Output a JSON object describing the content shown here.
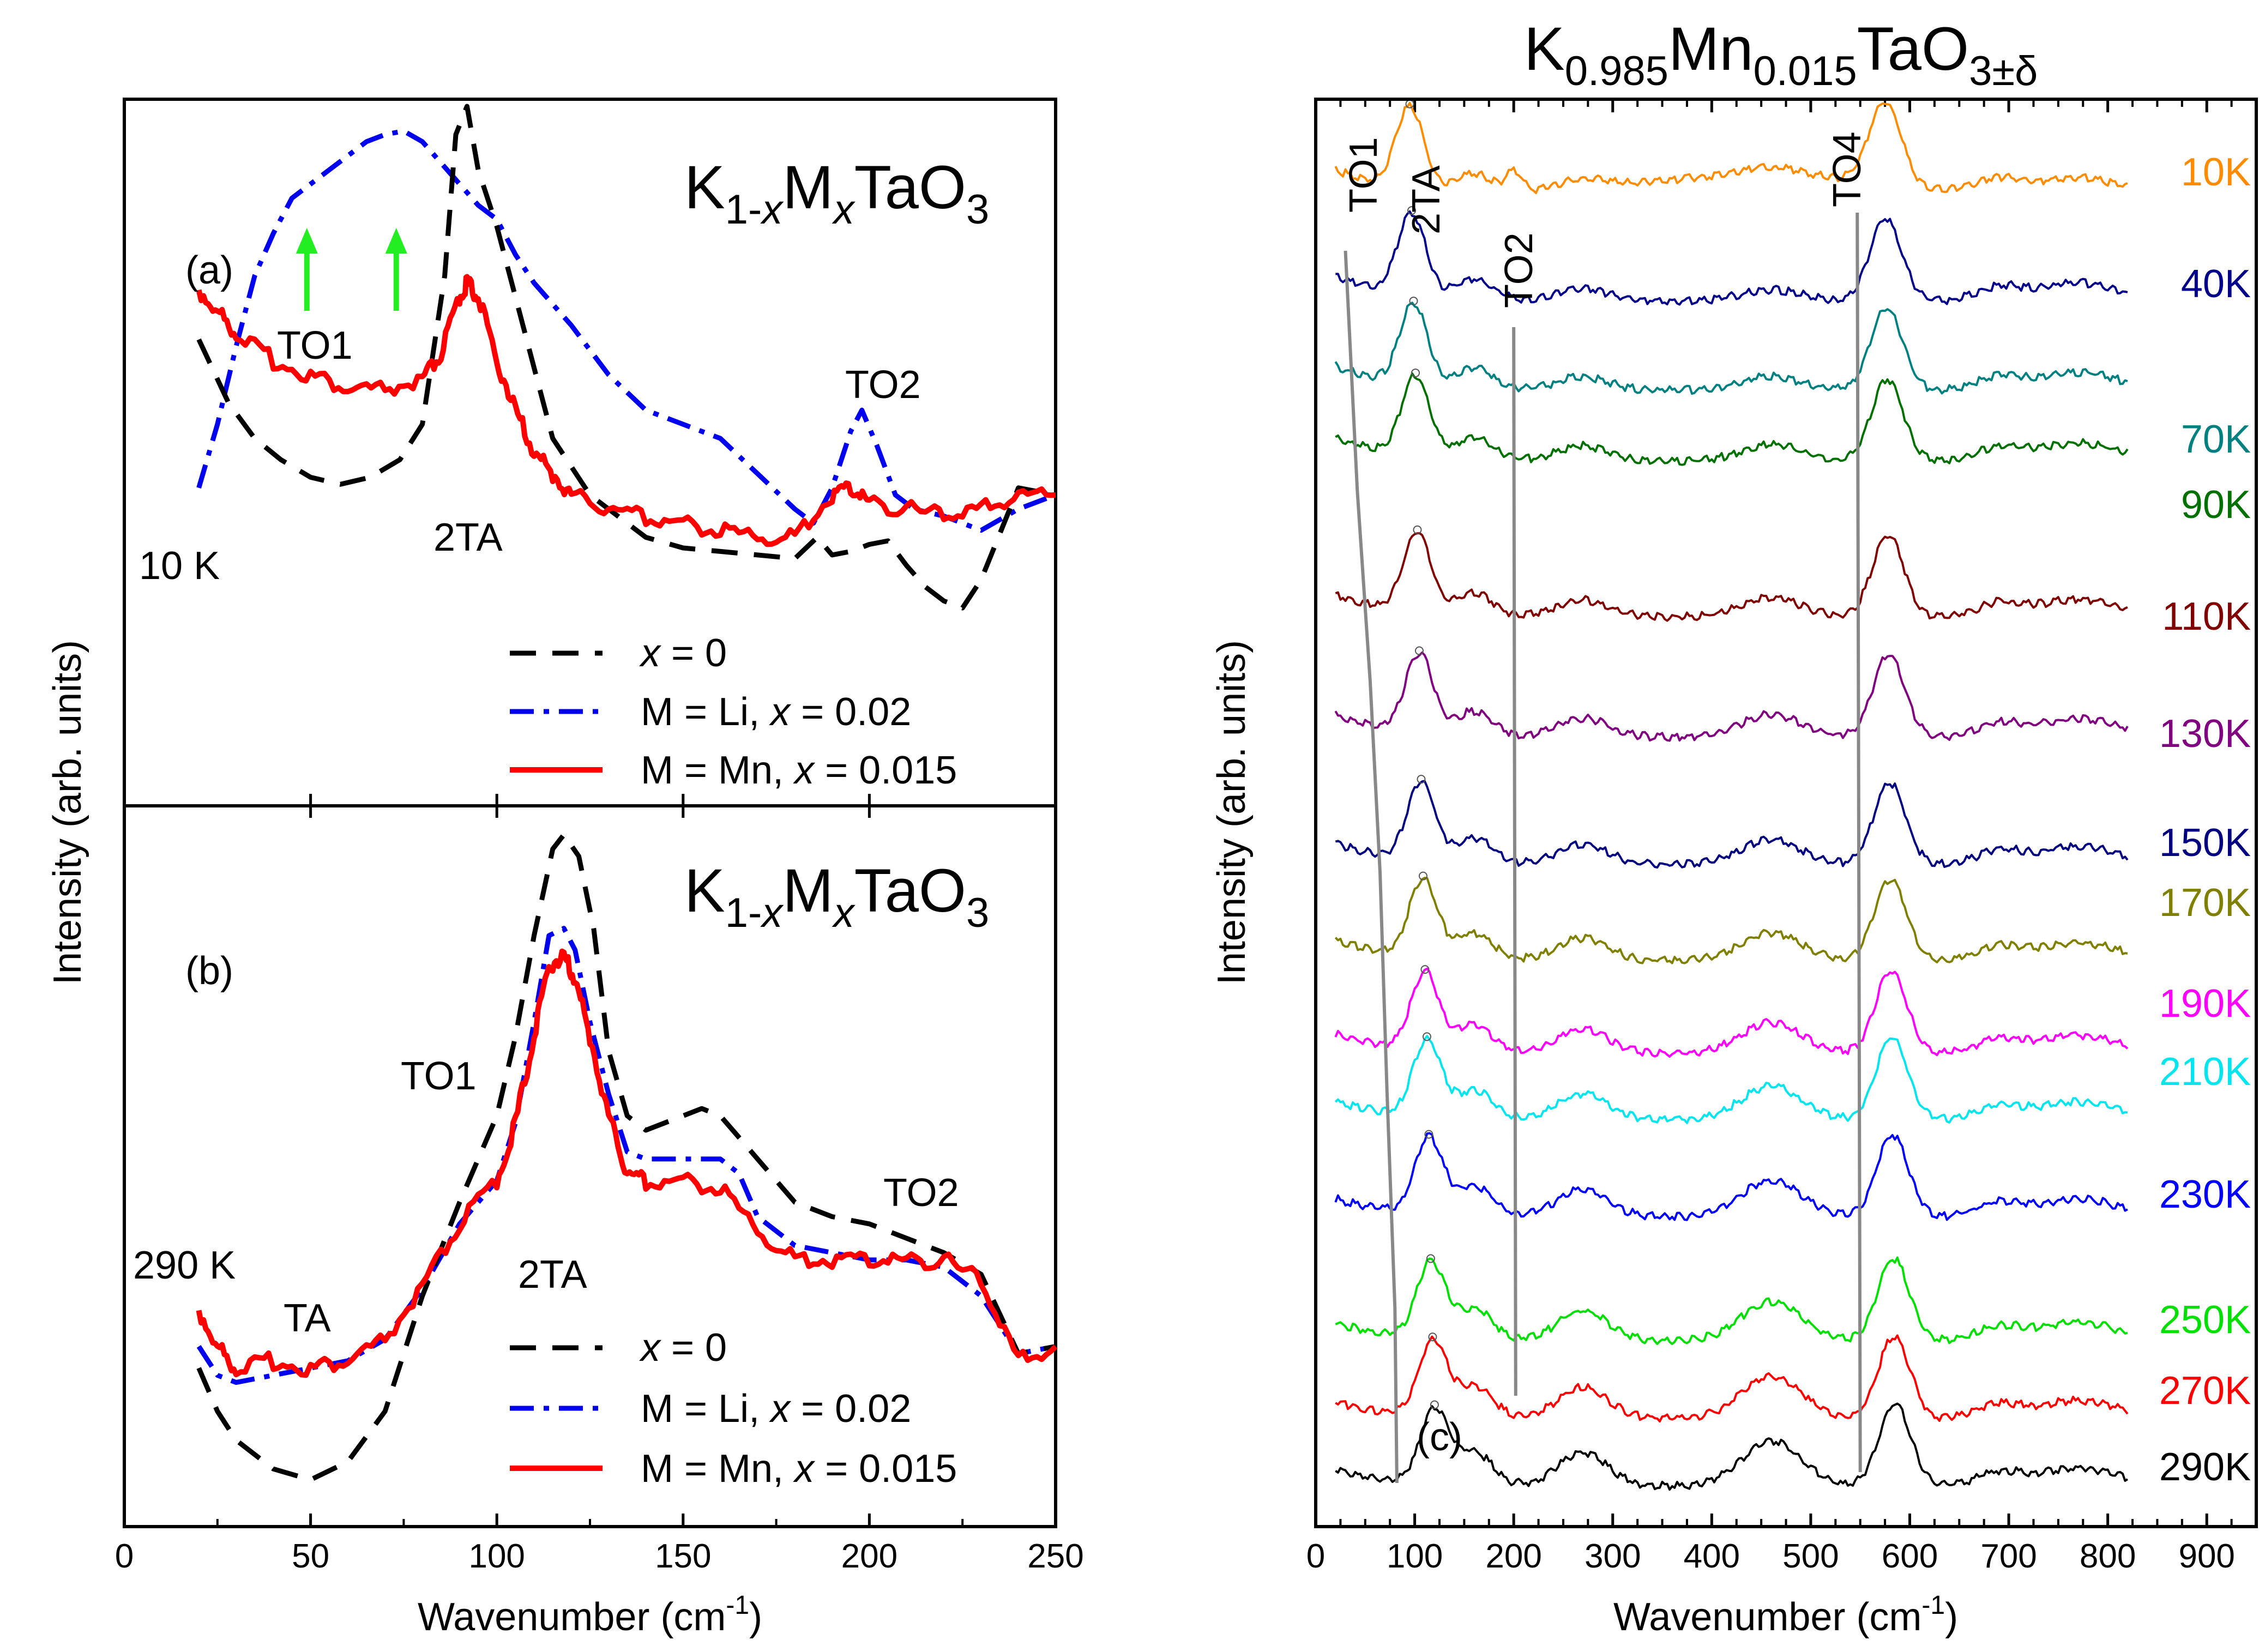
{
  "chart_data": [
    {
      "panel_label": "(a)",
      "type": "line",
      "title": "K1-xMxTaO3",
      "xlabel": "Wavenumber (cm-1)",
      "ylabel": "Intensity (arb. units)",
      "xlim": [
        0,
        250
      ],
      "xticks": [
        "0",
        "50",
        "100",
        "150",
        "200",
        "250"
      ],
      "annotations": [
        "10 K",
        "TO1",
        "2TA",
        "TO2"
      ],
      "arrow_positions_cm": [
        49,
        73
      ],
      "series": [
        {
          "name": "x = 0",
          "style": "dash",
          "color": "#000000",
          "x": [
            20,
            28,
            35,
            42,
            50,
            58,
            66,
            74,
            80,
            86,
            89,
            92,
            95,
            100,
            105,
            110,
            115,
            120,
            125,
            130,
            140,
            150,
            160,
            170,
            180,
            186,
            190,
            195,
            200,
            205,
            210,
            215,
            220,
            225,
            230,
            240,
            250
          ],
          "y": [
            0.34,
            0.43,
            0.48,
            0.51,
            0.535,
            0.545,
            0.535,
            0.51,
            0.46,
            0.25,
            0.05,
            0.01,
            0.1,
            0.18,
            0.28,
            0.38,
            0.48,
            0.52,
            0.56,
            0.58,
            0.62,
            0.635,
            0.64,
            0.645,
            0.65,
            0.62,
            0.645,
            0.64,
            0.63,
            0.625,
            0.66,
            0.69,
            0.71,
            0.72,
            0.68,
            0.55,
            0.56
          ]
        },
        {
          "name": "M = Li, x = 0.02",
          "style": "dashdot",
          "color": "#0000EE",
          "x": [
            20,
            25,
            30,
            35,
            40,
            45,
            50,
            55,
            60,
            65,
            70,
            75,
            80,
            85,
            90,
            95,
            100,
            105,
            110,
            120,
            130,
            140,
            150,
            160,
            170,
            180,
            185,
            190,
            195,
            198,
            202,
            207,
            212,
            220,
            230,
            240,
            250
          ],
          "y": [
            0.55,
            0.46,
            0.35,
            0.25,
            0.19,
            0.14,
            0.12,
            0.1,
            0.08,
            0.06,
            0.05,
            0.045,
            0.06,
            0.09,
            0.12,
            0.15,
            0.17,
            0.22,
            0.26,
            0.32,
            0.39,
            0.44,
            0.46,
            0.48,
            0.53,
            0.58,
            0.6,
            0.55,
            0.47,
            0.44,
            0.49,
            0.56,
            0.58,
            0.59,
            0.61,
            0.58,
            0.56
          ]
        },
        {
          "name": "M = Mn, x = 0.015",
          "style": "solid",
          "color": "#FF0000",
          "x": [
            20,
            25,
            30,
            40,
            50,
            60,
            70,
            80,
            85,
            90,
            92,
            95,
            100,
            105,
            110,
            115,
            120,
            130,
            140,
            150,
            160,
            170,
            180,
            190,
            195,
            200,
            210,
            220,
            230,
            240,
            250
          ],
          "y": [
            0.27,
            0.3,
            0.33,
            0.37,
            0.39,
            0.41,
            0.41,
            0.4,
            0.36,
            0.28,
            0.26,
            0.28,
            0.37,
            0.44,
            0.5,
            0.53,
            0.56,
            0.58,
            0.59,
            0.6,
            0.61,
            0.62,
            0.62,
            0.56,
            0.55,
            0.57,
            0.58,
            0.59,
            0.58,
            0.56,
            0.56
          ]
        }
      ]
    },
    {
      "panel_label": "(b)",
      "type": "line",
      "title": "K1-xMxTaO3",
      "xlabel": "Wavenumber (cm-1)",
      "xlim": [
        0,
        250
      ],
      "xticks": [
        "0",
        "50",
        "100",
        "150",
        "200",
        "250"
      ],
      "annotations": [
        "290 K",
        "TA",
        "TO1",
        "2TA",
        "TO2"
      ],
      "series": [
        {
          "name": "x = 0",
          "style": "dash",
          "color": "#000000",
          "x": [
            20,
            25,
            30,
            40,
            50,
            60,
            70,
            80,
            90,
            100,
            105,
            110,
            115,
            118,
            122,
            126,
            130,
            135,
            140,
            150,
            155,
            160,
            170,
            180,
            190,
            200,
            210,
            220,
            230,
            240,
            250
          ],
          "y": [
            0.78,
            0.84,
            0.88,
            0.92,
            0.935,
            0.91,
            0.84,
            0.68,
            0.55,
            0.43,
            0.32,
            0.18,
            0.06,
            0.04,
            0.07,
            0.17,
            0.34,
            0.43,
            0.45,
            0.43,
            0.42,
            0.43,
            0.49,
            0.55,
            0.57,
            0.58,
            0.6,
            0.62,
            0.65,
            0.76,
            0.75
          ]
        },
        {
          "name": "M = Li, x = 0.02",
          "style": "dashdot",
          "color": "#0000EE",
          "x": [
            20,
            25,
            30,
            40,
            50,
            60,
            70,
            80,
            90,
            100,
            105,
            110,
            114,
            118,
            121,
            125,
            130,
            135,
            140,
            150,
            160,
            165,
            170,
            180,
            190,
            200,
            210,
            220,
            230,
            240,
            250
          ],
          "y": [
            0.75,
            0.79,
            0.8,
            0.79,
            0.78,
            0.77,
            0.74,
            0.67,
            0.58,
            0.52,
            0.44,
            0.3,
            0.18,
            0.17,
            0.2,
            0.3,
            0.4,
            0.48,
            0.49,
            0.49,
            0.49,
            0.51,
            0.57,
            0.61,
            0.62,
            0.63,
            0.63,
            0.64,
            0.68,
            0.76,
            0.75
          ]
        },
        {
          "name": "M = Mn, x = 0.015",
          "style": "solid",
          "color": "#FF0000",
          "x": [
            20,
            25,
            30,
            40,
            50,
            60,
            70,
            80,
            90,
            100,
            105,
            110,
            114,
            118,
            121,
            125,
            130,
            135,
            140,
            150,
            160,
            170,
            180,
            190,
            200,
            210,
            220,
            230,
            240,
            250
          ],
          "y": [
            0.7,
            0.75,
            0.78,
            0.77,
            0.78,
            0.77,
            0.74,
            0.67,
            0.58,
            0.52,
            0.44,
            0.32,
            0.22,
            0.21,
            0.24,
            0.32,
            0.43,
            0.51,
            0.52,
            0.52,
            0.53,
            0.59,
            0.63,
            0.63,
            0.63,
            0.63,
            0.63,
            0.66,
            0.77,
            0.75
          ]
        }
      ]
    },
    {
      "panel_label": "(c)",
      "type": "line",
      "title": "K0.985Mn0.015TaO3±δ",
      "xlabel": "Wavenumber (cm-1)",
      "ylabel": "Intensity (arb. units)",
      "xlim": [
        0,
        950
      ],
      "xticks": [
        "0",
        "100",
        "200",
        "300",
        "400",
        "500",
        "600",
        "700",
        "800",
        "900"
      ],
      "mode_labels": [
        "TO1",
        "2TA",
        "TO2",
        "TO4"
      ],
      "series": [
        {
          "name": "10K",
          "color": "#FF8C00"
        },
        {
          "name": "40K",
          "color": "#00008B"
        },
        {
          "name": "70K",
          "color": "#008080"
        },
        {
          "name": "90K",
          "color": "#007000"
        },
        {
          "name": "110K",
          "color": "#800000"
        },
        {
          "name": "130K",
          "color": "#800080"
        },
        {
          "name": "150K",
          "color": "#000080"
        },
        {
          "name": "170K",
          "color": "#808000"
        },
        {
          "name": "190K",
          "color": "#FF00FF"
        },
        {
          "name": "210K",
          "color": "#00E5EE"
        },
        {
          "name": "230K",
          "color": "#0000FF"
        },
        {
          "name": "250K",
          "color": "#00E000"
        },
        {
          "name": "270K",
          "color": "#FF0000"
        },
        {
          "name": "290K",
          "color": "#000000"
        }
      ]
    }
  ]
}
